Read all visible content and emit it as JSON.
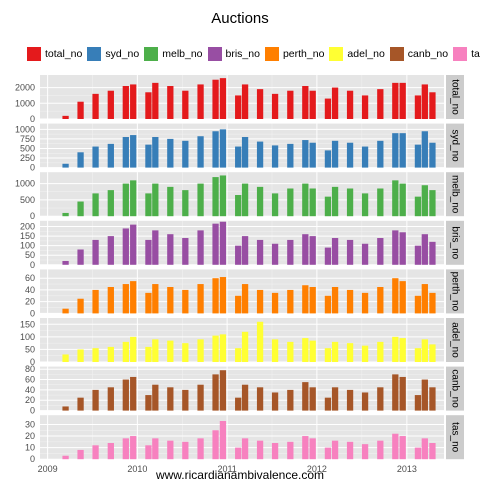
{
  "chart_data": {
    "type": "bar",
    "title": "Auctions",
    "xlabel": "www.ricardianambivalence.com",
    "x_ticks": [
      "2009",
      "2010",
      "2011",
      "2012",
      "2013"
    ],
    "grid": true,
    "legend_position": "top",
    "panels": [
      {
        "name": "total_no",
        "color": "#E41A1C",
        "ylim": [
          0,
          2800
        ],
        "yticks": [
          0,
          1000,
          2000
        ],
        "values": [
          {
            "x": "2009-03",
            "y": 200
          },
          {
            "x": "2009-05",
            "y": 1100
          },
          {
            "x": "2009-07",
            "y": 1600
          },
          {
            "x": "2009-09",
            "y": 1800
          },
          {
            "x": "2009-11",
            "y": 2100
          },
          {
            "x": "2009-12",
            "y": 2200
          },
          {
            "x": "2010-02",
            "y": 1700
          },
          {
            "x": "2010-03",
            "y": 2300
          },
          {
            "x": "2010-05",
            "y": 2100
          },
          {
            "x": "2010-07",
            "y": 1800
          },
          {
            "x": "2010-09",
            "y": 2200
          },
          {
            "x": "2010-11",
            "y": 2500
          },
          {
            "x": "2010-12",
            "y": 2600
          },
          {
            "x": "2011-02",
            "y": 1500
          },
          {
            "x": "2011-03",
            "y": 2200
          },
          {
            "x": "2011-05",
            "y": 1900
          },
          {
            "x": "2011-07",
            "y": 1600
          },
          {
            "x": "2011-09",
            "y": 1800
          },
          {
            "x": "2011-11",
            "y": 2100
          },
          {
            "x": "2011-12",
            "y": 1800
          },
          {
            "x": "2012-02",
            "y": 1300
          },
          {
            "x": "2012-03",
            "y": 2000
          },
          {
            "x": "2012-05",
            "y": 1800
          },
          {
            "x": "2012-07",
            "y": 1500
          },
          {
            "x": "2012-09",
            "y": 1900
          },
          {
            "x": "2012-11",
            "y": 2300
          },
          {
            "x": "2012-12",
            "y": 2300
          },
          {
            "x": "2013-02",
            "y": 1500
          },
          {
            "x": "2013-03",
            "y": 2200
          },
          {
            "x": "2013-04",
            "y": 1700
          }
        ]
      },
      {
        "name": "syd_no",
        "color": "#377EB8",
        "ylim": [
          0,
          1150
        ],
        "yticks": [
          0,
          250,
          500,
          750,
          1000
        ],
        "values": [
          {
            "x": "2009-03",
            "y": 100
          },
          {
            "x": "2009-05",
            "y": 400
          },
          {
            "x": "2009-07",
            "y": 550
          },
          {
            "x": "2009-09",
            "y": 620
          },
          {
            "x": "2009-11",
            "y": 800
          },
          {
            "x": "2009-12",
            "y": 850
          },
          {
            "x": "2010-02",
            "y": 600
          },
          {
            "x": "2010-03",
            "y": 800
          },
          {
            "x": "2010-05",
            "y": 750
          },
          {
            "x": "2010-07",
            "y": 700
          },
          {
            "x": "2010-09",
            "y": 820
          },
          {
            "x": "2010-11",
            "y": 950
          },
          {
            "x": "2010-12",
            "y": 1000
          },
          {
            "x": "2011-02",
            "y": 550
          },
          {
            "x": "2011-03",
            "y": 800
          },
          {
            "x": "2011-05",
            "y": 680
          },
          {
            "x": "2011-07",
            "y": 580
          },
          {
            "x": "2011-09",
            "y": 620
          },
          {
            "x": "2011-11",
            "y": 720
          },
          {
            "x": "2011-12",
            "y": 650
          },
          {
            "x": "2012-02",
            "y": 450
          },
          {
            "x": "2012-03",
            "y": 700
          },
          {
            "x": "2012-05",
            "y": 650
          },
          {
            "x": "2012-07",
            "y": 550
          },
          {
            "x": "2012-09",
            "y": 700
          },
          {
            "x": "2012-11",
            "y": 900
          },
          {
            "x": "2012-12",
            "y": 900
          },
          {
            "x": "2013-02",
            "y": 600
          },
          {
            "x": "2013-03",
            "y": 950
          },
          {
            "x": "2013-04",
            "y": 650
          }
        ]
      },
      {
        "name": "melb_no",
        "color": "#4DAF4A",
        "ylim": [
          0,
          1350
        ],
        "yticks": [
          0,
          500,
          1000
        ],
        "values": [
          {
            "x": "2009-03",
            "y": 100
          },
          {
            "x": "2009-05",
            "y": 450
          },
          {
            "x": "2009-07",
            "y": 700
          },
          {
            "x": "2009-09",
            "y": 800
          },
          {
            "x": "2009-11",
            "y": 1000
          },
          {
            "x": "2009-12",
            "y": 1100
          },
          {
            "x": "2010-02",
            "y": 700
          },
          {
            "x": "2010-03",
            "y": 1000
          },
          {
            "x": "2010-05",
            "y": 900
          },
          {
            "x": "2010-07",
            "y": 800
          },
          {
            "x": "2010-09",
            "y": 1000
          },
          {
            "x": "2010-11",
            "y": 1200
          },
          {
            "x": "2010-12",
            "y": 1250
          },
          {
            "x": "2011-02",
            "y": 650
          },
          {
            "x": "2011-03",
            "y": 1000
          },
          {
            "x": "2011-05",
            "y": 900
          },
          {
            "x": "2011-07",
            "y": 700
          },
          {
            "x": "2011-09",
            "y": 850
          },
          {
            "x": "2011-11",
            "y": 1000
          },
          {
            "x": "2011-12",
            "y": 850
          },
          {
            "x": "2012-02",
            "y": 600
          },
          {
            "x": "2012-03",
            "y": 900
          },
          {
            "x": "2012-05",
            "y": 850
          },
          {
            "x": "2012-07",
            "y": 700
          },
          {
            "x": "2012-09",
            "y": 850
          },
          {
            "x": "2012-11",
            "y": 1100
          },
          {
            "x": "2012-12",
            "y": 1000
          },
          {
            "x": "2013-02",
            "y": 600
          },
          {
            "x": "2013-03",
            "y": 950
          },
          {
            "x": "2013-04",
            "y": 800
          }
        ]
      },
      {
        "name": "bris_no",
        "color": "#984EA3",
        "ylim": [
          0,
          230
        ],
        "yticks": [
          0,
          50,
          100,
          150,
          200
        ],
        "values": [
          {
            "x": "2009-03",
            "y": 20
          },
          {
            "x": "2009-05",
            "y": 80
          },
          {
            "x": "2009-07",
            "y": 130
          },
          {
            "x": "2009-09",
            "y": 150
          },
          {
            "x": "2009-11",
            "y": 190
          },
          {
            "x": "2009-12",
            "y": 210
          },
          {
            "x": "2010-02",
            "y": 130
          },
          {
            "x": "2010-03",
            "y": 180
          },
          {
            "x": "2010-05",
            "y": 160
          },
          {
            "x": "2010-07",
            "y": 140
          },
          {
            "x": "2010-09",
            "y": 180
          },
          {
            "x": "2010-11",
            "y": 215
          },
          {
            "x": "2010-12",
            "y": 225
          },
          {
            "x": "2011-02",
            "y": 100
          },
          {
            "x": "2011-03",
            "y": 150
          },
          {
            "x": "2011-05",
            "y": 130
          },
          {
            "x": "2011-07",
            "y": 110
          },
          {
            "x": "2011-09",
            "y": 130
          },
          {
            "x": "2011-11",
            "y": 160
          },
          {
            "x": "2011-12",
            "y": 150
          },
          {
            "x": "2012-02",
            "y": 90
          },
          {
            "x": "2012-03",
            "y": 140
          },
          {
            "x": "2012-05",
            "y": 130
          },
          {
            "x": "2012-07",
            "y": 110
          },
          {
            "x": "2012-09",
            "y": 140
          },
          {
            "x": "2012-11",
            "y": 180
          },
          {
            "x": "2012-12",
            "y": 170
          },
          {
            "x": "2013-02",
            "y": 100
          },
          {
            "x": "2013-03",
            "y": 160
          },
          {
            "x": "2013-04",
            "y": 120
          }
        ]
      },
      {
        "name": "perth_no",
        "color": "#FF7F00",
        "ylim": [
          0,
          75
        ],
        "yticks": [
          0,
          20,
          40,
          60
        ],
        "values": [
          {
            "x": "2009-03",
            "y": 8
          },
          {
            "x": "2009-05",
            "y": 25
          },
          {
            "x": "2009-07",
            "y": 40
          },
          {
            "x": "2009-09",
            "y": 45
          },
          {
            "x": "2009-11",
            "y": 50
          },
          {
            "x": "2009-12",
            "y": 55
          },
          {
            "x": "2010-02",
            "y": 35
          },
          {
            "x": "2010-03",
            "y": 50
          },
          {
            "x": "2010-05",
            "y": 45
          },
          {
            "x": "2010-07",
            "y": 40
          },
          {
            "x": "2010-09",
            "y": 50
          },
          {
            "x": "2010-11",
            "y": 60
          },
          {
            "x": "2010-12",
            "y": 62
          },
          {
            "x": "2011-02",
            "y": 30
          },
          {
            "x": "2011-03",
            "y": 50
          },
          {
            "x": "2011-05",
            "y": 40
          },
          {
            "x": "2011-07",
            "y": 35
          },
          {
            "x": "2011-09",
            "y": 40
          },
          {
            "x": "2011-11",
            "y": 48
          },
          {
            "x": "2011-12",
            "y": 45
          },
          {
            "x": "2012-02",
            "y": 30
          },
          {
            "x": "2012-03",
            "y": 45
          },
          {
            "x": "2012-05",
            "y": 40
          },
          {
            "x": "2012-07",
            "y": 35
          },
          {
            "x": "2012-09",
            "y": 45
          },
          {
            "x": "2012-11",
            "y": 60
          },
          {
            "x": "2012-12",
            "y": 55
          },
          {
            "x": "2013-02",
            "y": 30
          },
          {
            "x": "2013-03",
            "y": 50
          },
          {
            "x": "2013-04",
            "y": 35
          }
        ]
      },
      {
        "name": "adel_no",
        "color": "#FFFF33",
        "ylim": [
          0,
          175
        ],
        "yticks": [
          0,
          50,
          100,
          150
        ],
        "values": [
          {
            "x": "2009-03",
            "y": 30
          },
          {
            "x": "2009-05",
            "y": 50
          },
          {
            "x": "2009-07",
            "y": 55
          },
          {
            "x": "2009-09",
            "y": 60
          },
          {
            "x": "2009-11",
            "y": 80
          },
          {
            "x": "2009-12",
            "y": 100
          },
          {
            "x": "2010-02",
            "y": 60
          },
          {
            "x": "2010-03",
            "y": 90
          },
          {
            "x": "2010-05",
            "y": 85
          },
          {
            "x": "2010-07",
            "y": 75
          },
          {
            "x": "2010-09",
            "y": 90
          },
          {
            "x": "2010-11",
            "y": 105
          },
          {
            "x": "2010-12",
            "y": 110
          },
          {
            "x": "2011-02",
            "y": 55
          },
          {
            "x": "2011-03",
            "y": 120
          },
          {
            "x": "2011-05",
            "y": 160
          },
          {
            "x": "2011-07",
            "y": 90
          },
          {
            "x": "2011-09",
            "y": 80
          },
          {
            "x": "2011-11",
            "y": 95
          },
          {
            "x": "2011-12",
            "y": 85
          },
          {
            "x": "2012-02",
            "y": 55
          },
          {
            "x": "2012-03",
            "y": 80
          },
          {
            "x": "2012-05",
            "y": 75
          },
          {
            "x": "2012-07",
            "y": 65
          },
          {
            "x": "2012-09",
            "y": 80
          },
          {
            "x": "2012-11",
            "y": 100
          },
          {
            "x": "2012-12",
            "y": 95
          },
          {
            "x": "2013-02",
            "y": 55
          },
          {
            "x": "2013-03",
            "y": 90
          },
          {
            "x": "2013-04",
            "y": 70
          }
        ]
      },
      {
        "name": "canb_no",
        "color": "#A65628",
        "ylim": [
          0,
          85
        ],
        "yticks": [
          0,
          20,
          40,
          60,
          80
        ],
        "values": [
          {
            "x": "2009-03",
            "y": 8
          },
          {
            "x": "2009-05",
            "y": 25
          },
          {
            "x": "2009-07",
            "y": 40
          },
          {
            "x": "2009-09",
            "y": 45
          },
          {
            "x": "2009-11",
            "y": 60
          },
          {
            "x": "2009-12",
            "y": 65
          },
          {
            "x": "2010-02",
            "y": 30
          },
          {
            "x": "2010-03",
            "y": 50
          },
          {
            "x": "2010-05",
            "y": 45
          },
          {
            "x": "2010-07",
            "y": 40
          },
          {
            "x": "2010-09",
            "y": 50
          },
          {
            "x": "2010-11",
            "y": 70
          },
          {
            "x": "2010-12",
            "y": 78
          },
          {
            "x": "2011-02",
            "y": 25
          },
          {
            "x": "2011-03",
            "y": 50
          },
          {
            "x": "2011-05",
            "y": 45
          },
          {
            "x": "2011-07",
            "y": 35
          },
          {
            "x": "2011-09",
            "y": 40
          },
          {
            "x": "2011-11",
            "y": 55
          },
          {
            "x": "2011-12",
            "y": 45
          },
          {
            "x": "2012-02",
            "y": 25
          },
          {
            "x": "2012-03",
            "y": 45
          },
          {
            "x": "2012-05",
            "y": 40
          },
          {
            "x": "2012-07",
            "y": 35
          },
          {
            "x": "2012-09",
            "y": 45
          },
          {
            "x": "2012-11",
            "y": 70
          },
          {
            "x": "2012-12",
            "y": 65
          },
          {
            "x": "2013-02",
            "y": 30
          },
          {
            "x": "2013-03",
            "y": 60
          },
          {
            "x": "2013-04",
            "y": 45
          }
        ]
      },
      {
        "name": "tas_no",
        "color": "#F781BF",
        "ylim": [
          0,
          38
        ],
        "yticks": [
          0,
          10,
          20,
          30
        ],
        "values": [
          {
            "x": "2009-03",
            "y": 3
          },
          {
            "x": "2009-05",
            "y": 8
          },
          {
            "x": "2009-07",
            "y": 12
          },
          {
            "x": "2009-09",
            "y": 14
          },
          {
            "x": "2009-11",
            "y": 18
          },
          {
            "x": "2009-12",
            "y": 20
          },
          {
            "x": "2010-02",
            "y": 12
          },
          {
            "x": "2010-03",
            "y": 18
          },
          {
            "x": "2010-05",
            "y": 16
          },
          {
            "x": "2010-07",
            "y": 15
          },
          {
            "x": "2010-09",
            "y": 18
          },
          {
            "x": "2010-11",
            "y": 25
          },
          {
            "x": "2010-12",
            "y": 33
          },
          {
            "x": "2011-02",
            "y": 10
          },
          {
            "x": "2011-03",
            "y": 18
          },
          {
            "x": "2011-05",
            "y": 16
          },
          {
            "x": "2011-07",
            "y": 14
          },
          {
            "x": "2011-09",
            "y": 15
          },
          {
            "x": "2011-11",
            "y": 20
          },
          {
            "x": "2011-12",
            "y": 18
          },
          {
            "x": "2012-02",
            "y": 10
          },
          {
            "x": "2012-03",
            "y": 16
          },
          {
            "x": "2012-05",
            "y": 15
          },
          {
            "x": "2012-07",
            "y": 13
          },
          {
            "x": "2012-09",
            "y": 16
          },
          {
            "x": "2012-11",
            "y": 22
          },
          {
            "x": "2012-12",
            "y": 20
          },
          {
            "x": "2013-02",
            "y": 10
          },
          {
            "x": "2013-03",
            "y": 18
          },
          {
            "x": "2013-04",
            "y": 14
          }
        ]
      }
    ]
  }
}
